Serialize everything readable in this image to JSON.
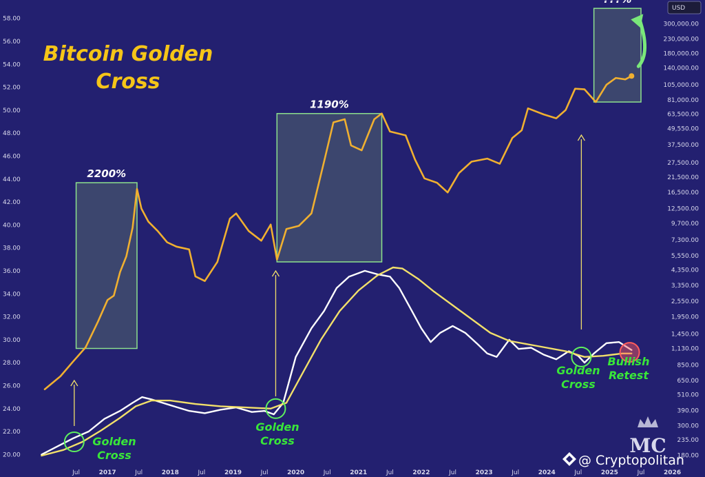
{
  "chart_data": {
    "type": "line",
    "title": "Bitcoin Golden Cross",
    "currency_badge": "USD",
    "x_ticks": [
      "Jul",
      "2017",
      "Jul",
      "2018",
      "Jul",
      "2019",
      "Jul",
      "2020",
      "Jul",
      "2021",
      "Jul",
      "2022",
      "Jul",
      "2023",
      "Jul",
      "2024",
      "Jul",
      "2025",
      "Jul",
      "2026"
    ],
    "left_axis": {
      "ticks": [
        "58.00",
        "56.00",
        "54.00",
        "52.00",
        "50.00",
        "48.00",
        "46.00",
        "44.00",
        "42.00",
        "40.00",
        "38.00",
        "36.00",
        "34.00",
        "32.00",
        "30.00",
        "28.00",
        "26.00",
        "24.00",
        "22.00",
        "20.00"
      ],
      "range": [
        19,
        59
      ]
    },
    "right_axis": {
      "scale": "log",
      "ticks": [
        "300,000.00",
        "230,000.00",
        "180,000.00",
        "140,000.00",
        "105,000.00",
        "81,000.00",
        "63,500.00",
        "49,550.00",
        "37,500.00",
        "27,500.00",
        "21,500.00",
        "16,500.00",
        "12,500.00",
        "9,700.00",
        "7,300.00",
        "5,550.00",
        "4,350.00",
        "3,350.00",
        "2,550.00",
        "1,950.00",
        "1,450.00",
        "1,130.00",
        "850.00",
        "650.00",
        "510.00",
        "390.00",
        "300.00",
        "235.00",
        "180.00"
      ]
    },
    "series": [
      {
        "color": "#f0b030",
        "axis": "right",
        "points": [
          [
            2016.5,
            560
          ],
          [
            2016.75,
            700
          ],
          [
            2016.95,
            900
          ],
          [
            2017.15,
            1150
          ],
          [
            2017.35,
            1800
          ],
          [
            2017.5,
            2600
          ],
          [
            2017.6,
            2800
          ],
          [
            2017.7,
            4200
          ],
          [
            2017.8,
            5500
          ],
          [
            2017.9,
            9000
          ],
          [
            2017.97,
            17500
          ],
          [
            2018.04,
            12500
          ],
          [
            2018.15,
            10000
          ],
          [
            2018.3,
            8500
          ],
          [
            2018.45,
            7000
          ],
          [
            2018.6,
            6500
          ],
          [
            2018.8,
            6200
          ],
          [
            2018.9,
            3900
          ],
          [
            2019.05,
            3600
          ],
          [
            2019.25,
            5000
          ],
          [
            2019.45,
            10500
          ],
          [
            2019.55,
            11500
          ],
          [
            2019.75,
            8500
          ],
          [
            2019.95,
            7200
          ],
          [
            2020.1,
            9500
          ],
          [
            2020.2,
            5200
          ],
          [
            2020.35,
            8800
          ],
          [
            2020.55,
            9300
          ],
          [
            2020.75,
            11500
          ],
          [
            2020.95,
            28000
          ],
          [
            2021.1,
            55000
          ],
          [
            2021.28,
            58000
          ],
          [
            2021.38,
            37000
          ],
          [
            2021.55,
            34000
          ],
          [
            2021.75,
            58000
          ],
          [
            2021.87,
            64000
          ],
          [
            2022.0,
            47000
          ],
          [
            2022.25,
            44000
          ],
          [
            2022.4,
            29000
          ],
          [
            2022.55,
            21000
          ],
          [
            2022.75,
            19500
          ],
          [
            2022.92,
            16500
          ],
          [
            2023.1,
            23000
          ],
          [
            2023.3,
            28000
          ],
          [
            2023.55,
            29500
          ],
          [
            2023.75,
            27000
          ],
          [
            2023.95,
            42000
          ],
          [
            2024.1,
            48000
          ],
          [
            2024.2,
            70000
          ],
          [
            2024.45,
            63000
          ],
          [
            2024.65,
            59000
          ],
          [
            2024.8,
            68000
          ],
          [
            2024.95,
            98000
          ],
          [
            2025.1,
            97000
          ],
          [
            2025.28,
            78000
          ],
          [
            2025.45,
            105000
          ],
          [
            2025.6,
            118000
          ],
          [
            2025.75,
            115000
          ],
          [
            2025.85,
            122000
          ]
        ]
      },
      {
        "color": "#ffffff",
        "axis": "left",
        "points": [
          [
            2016.45,
            20.0
          ],
          [
            2016.7,
            20.7
          ],
          [
            2016.95,
            21.4
          ],
          [
            2017.2,
            22.0
          ],
          [
            2017.45,
            23.1
          ],
          [
            2017.7,
            23.8
          ],
          [
            2017.9,
            24.5
          ],
          [
            2018.05,
            25.0
          ],
          [
            2018.2,
            24.8
          ],
          [
            2018.5,
            24.3
          ],
          [
            2018.8,
            23.8
          ],
          [
            2019.05,
            23.6
          ],
          [
            2019.3,
            23.9
          ],
          [
            2019.55,
            24.1
          ],
          [
            2019.8,
            23.7
          ],
          [
            2020.0,
            23.8
          ],
          [
            2020.15,
            23.5
          ],
          [
            2020.3,
            24.5
          ],
          [
            2020.5,
            28.5
          ],
          [
            2020.75,
            31.0
          ],
          [
            2020.95,
            32.5
          ],
          [
            2021.15,
            34.5
          ],
          [
            2021.35,
            35.5
          ],
          [
            2021.6,
            36.0
          ],
          [
            2021.8,
            35.7
          ],
          [
            2022.0,
            35.5
          ],
          [
            2022.15,
            34.5
          ],
          [
            2022.35,
            32.5
          ],
          [
            2022.5,
            31.0
          ],
          [
            2022.65,
            29.8
          ],
          [
            2022.8,
            30.6
          ],
          [
            2023.0,
            31.2
          ],
          [
            2023.2,
            30.6
          ],
          [
            2023.4,
            29.6
          ],
          [
            2023.55,
            28.8
          ],
          [
            2023.7,
            28.5
          ],
          [
            2023.9,
            30.0
          ],
          [
            2024.05,
            29.2
          ],
          [
            2024.25,
            29.3
          ],
          [
            2024.45,
            28.7
          ],
          [
            2024.65,
            28.3
          ],
          [
            2024.85,
            29.0
          ],
          [
            2025.0,
            28.6
          ],
          [
            2025.1,
            28.0
          ],
          [
            2025.25,
            28.8
          ],
          [
            2025.45,
            29.7
          ],
          [
            2025.65,
            29.8
          ],
          [
            2025.85,
            29.1
          ]
        ]
      },
      {
        "color": "#f2e06a",
        "axis": "left",
        "points": [
          [
            2016.45,
            19.9
          ],
          [
            2016.8,
            20.4
          ],
          [
            2017.1,
            21.1
          ],
          [
            2017.4,
            22.1
          ],
          [
            2017.7,
            23.2
          ],
          [
            2017.95,
            24.2
          ],
          [
            2018.2,
            24.7
          ],
          [
            2018.5,
            24.7
          ],
          [
            2018.9,
            24.4
          ],
          [
            2019.3,
            24.2
          ],
          [
            2019.7,
            24.1
          ],
          [
            2020.1,
            24.0
          ],
          [
            2020.35,
            24.5
          ],
          [
            2020.6,
            27.0
          ],
          [
            2020.9,
            30.0
          ],
          [
            2021.2,
            32.5
          ],
          [
            2021.5,
            34.3
          ],
          [
            2021.8,
            35.6
          ],
          [
            2022.05,
            36.3
          ],
          [
            2022.2,
            36.2
          ],
          [
            2022.45,
            35.3
          ],
          [
            2022.7,
            34.2
          ],
          [
            2023.0,
            33.0
          ],
          [
            2023.3,
            31.8
          ],
          [
            2023.6,
            30.6
          ],
          [
            2023.9,
            29.9
          ],
          [
            2024.2,
            29.6
          ],
          [
            2024.5,
            29.3
          ],
          [
            2024.8,
            29.0
          ],
          [
            2025.1,
            28.5
          ],
          [
            2025.4,
            28.6
          ],
          [
            2025.7,
            28.8
          ],
          [
            2025.85,
            28.8
          ]
        ]
      }
    ],
    "highlight_boxes": [
      {
        "label": "2200%",
        "x": [
          2017.0,
          2017.97
        ],
        "y": [
          1130,
          19500
        ]
      },
      {
        "label": "1190%",
        "x": [
          2020.2,
          2021.87
        ],
        "y": [
          5000,
          64000
        ]
      },
      {
        "label": "???%",
        "x": [
          2025.25,
          2026.0
        ],
        "y": [
          78000,
          390000
        ]
      }
    ],
    "annotations": [
      {
        "label": [
          "Golden",
          "Cross"
        ],
        "x": 2016.97,
        "y": 21.1,
        "circle_color": "#5ef05e"
      },
      {
        "label": [
          "Golden",
          "Cross"
        ],
        "x": 2020.18,
        "y": 24.0,
        "circle_color": "#5ef05e"
      },
      {
        "label": [
          "Golden",
          "Cross"
        ],
        "x": 2025.05,
        "y": 28.5,
        "circle_color": "#5ef05e"
      },
      {
        "label": [
          "Bullish",
          "Retest"
        ],
        "x": 2025.82,
        "y": 28.9,
        "circle_color": "#ff5c5c"
      }
    ]
  },
  "logo_text": "MC",
  "watermark": "@ Cryptopolitan"
}
